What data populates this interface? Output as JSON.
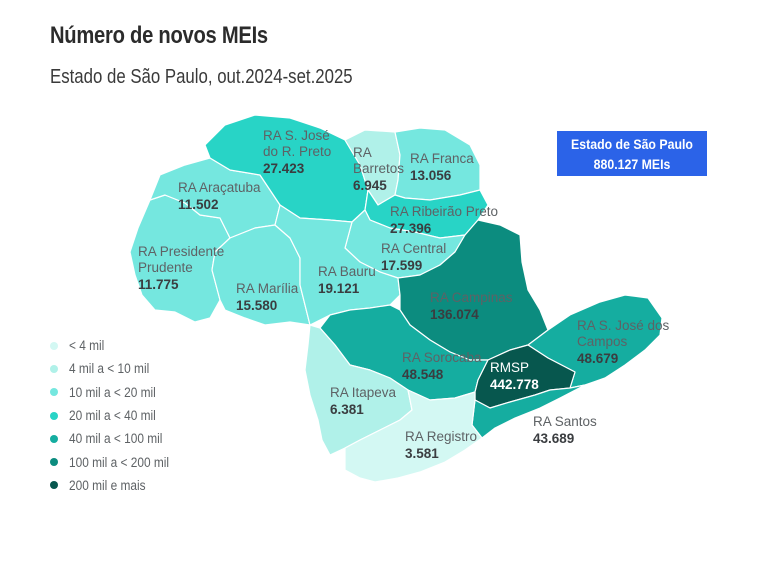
{
  "title": "Número de novos MEIs",
  "subtitle": "Estado de São Paulo, out.2024-set.2025",
  "total": {
    "label": "Estado de São Paulo",
    "value": "880.127 MEIs"
  },
  "legend": [
    {
      "label": "< 4 mil",
      "color": "#d3f8f3"
    },
    {
      "label": "4 mil a < 10 mil",
      "color": "#b0f1e9"
    },
    {
      "label": "10 mil a < 20 mil",
      "color": "#75e7df"
    },
    {
      "label": "20 mil a < 40 mil",
      "color": "#28d4c6"
    },
    {
      "label": "40 mil a < 100 mil",
      "color": "#15ada0"
    },
    {
      "label": "100 mil a < 200 mil",
      "color": "#0c8c7f"
    },
    {
      "label": "200 mil e mais",
      "color": "#07574e"
    }
  ],
  "regions": [
    {
      "name_lines": [
        "RA S. José",
        "do R. Preto"
      ],
      "value": "27.423",
      "class": 3
    },
    {
      "name_lines": [
        "RA",
        "Barretos"
      ],
      "value": "6.945",
      "class": 1
    },
    {
      "name_lines": [
        "RA Franca"
      ],
      "value": "13.056",
      "class": 2
    },
    {
      "name_lines": [
        "RA Araçatuba"
      ],
      "value": "11.502",
      "class": 2
    },
    {
      "name_lines": [
        "RA Ribeirão Preto"
      ],
      "value": "27.396",
      "class": 3
    },
    {
      "name_lines": [
        "RA Central"
      ],
      "value": "17.599",
      "class": 2
    },
    {
      "name_lines": [
        "RA Presidente",
        "Prudente"
      ],
      "value": "11.775",
      "class": 2
    },
    {
      "name_lines": [
        "RA Bauru"
      ],
      "value": "19.121",
      "class": 2
    },
    {
      "name_lines": [
        "RA Marília"
      ],
      "value": "15.580",
      "class": 2
    },
    {
      "name_lines": [
        "RA Campinas"
      ],
      "value": "136.074",
      "class": 5
    },
    {
      "name_lines": [
        "RA S. José dos",
        "Campos"
      ],
      "value": "48.679",
      "class": 4
    },
    {
      "name_lines": [
        "RA Sorocaba"
      ],
      "value": "48.548",
      "class": 4
    },
    {
      "name_lines": [
        "RMSP"
      ],
      "value": "442.778",
      "class": 6
    },
    {
      "name_lines": [
        "RA Itapeva"
      ],
      "value": "6.381",
      "class": 1
    },
    {
      "name_lines": [
        "RA Santos"
      ],
      "value": "43.689",
      "class": 4
    },
    {
      "name_lines": [
        "RA Registro"
      ],
      "value": "3.581",
      "class": 0
    }
  ]
}
